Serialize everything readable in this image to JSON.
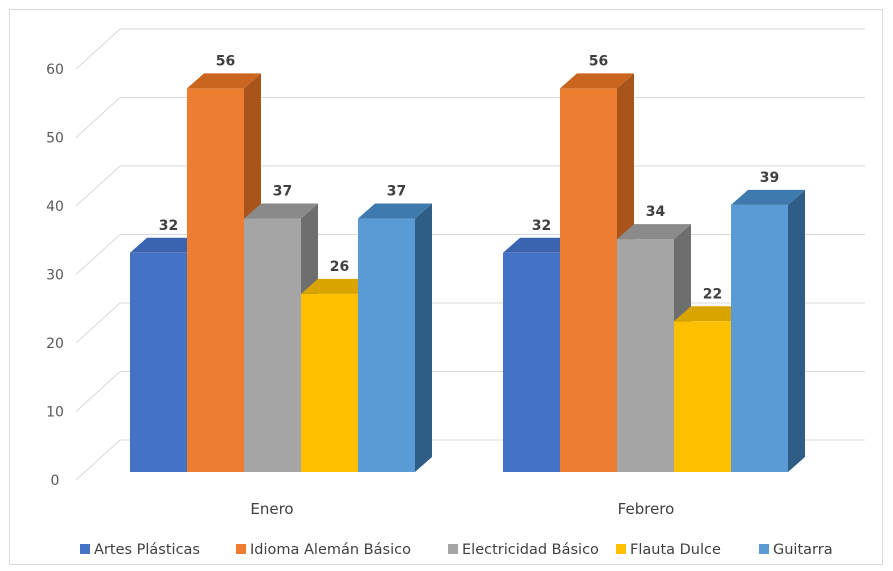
{
  "chart_data": {
    "type": "bar",
    "style": "3d-clustered-column",
    "categories": [
      "Enero",
      "Febrero"
    ],
    "series": [
      {
        "name": "Artes Plásticas",
        "values": [
          32,
          32
        ],
        "color": "#4472C4",
        "side": "#2F5597",
        "top": "#3A64B0"
      },
      {
        "name": "Idioma Alemán Básico",
        "values": [
          56,
          56
        ],
        "color": "#ED7D31",
        "side": "#A8541A",
        "top": "#C9651F"
      },
      {
        "name": "Electricidad Básico",
        "values": [
          37,
          34
        ],
        "color": "#A5A5A5",
        "side": "#6E6E6E",
        "top": "#8A8A8A"
      },
      {
        "name": "Flauta Dulce",
        "values": [
          26,
          22
        ],
        "color": "#FFC000",
        "side": "#B98A00",
        "top": "#D9A300"
      },
      {
        "name": "Guitarra",
        "values": [
          37,
          39
        ],
        "color": "#5B9BD5",
        "side": "#2E5E86",
        "top": "#3F7AAE"
      }
    ],
    "y_ticks": [
      "0",
      "10",
      "20",
      "30",
      "40",
      "50",
      "60"
    ],
    "ylim": [
      0,
      60
    ],
    "grid": true,
    "legend_position": "bottom",
    "data_labels": true
  }
}
